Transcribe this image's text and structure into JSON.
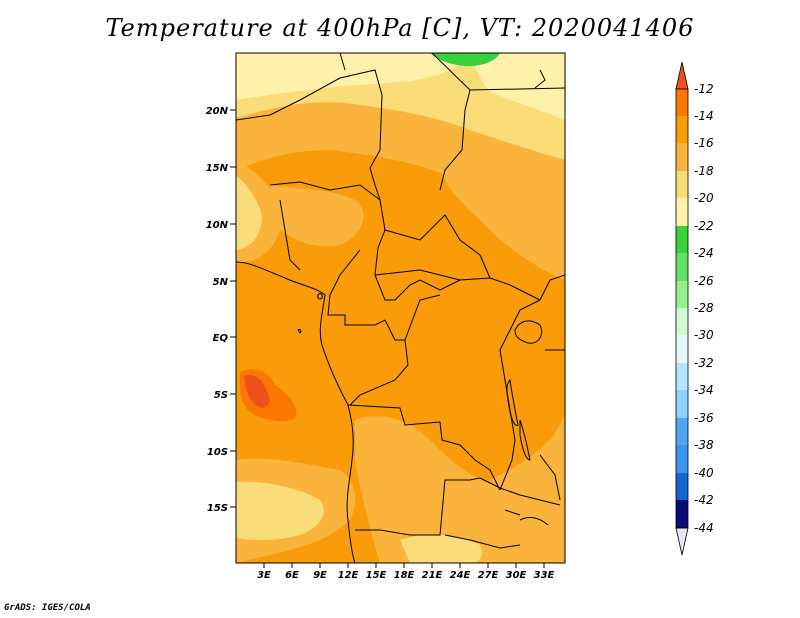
{
  "title": "Temperature at 400hPa [C], VT: 2020041406",
  "credit": "GrADS: IGES/COLA",
  "map": {
    "variable": "Temperature at 400hPa",
    "units": "C",
    "valid_time": "2020041406",
    "lat_range": [
      -20,
      25
    ],
    "lon_range": [
      0,
      36
    ],
    "lat_ticks": [
      "20N",
      "15N",
      "10N",
      "5N",
      "EQ",
      "5S",
      "10S",
      "15S"
    ],
    "lon_ticks": [
      "3E",
      "6E",
      "9E",
      "12E",
      "15E",
      "18E",
      "21E",
      "24E",
      "27E",
      "30E",
      "33E"
    ]
  },
  "colorbar": {
    "labels": [
      "-12",
      "-14",
      "-16",
      "-18",
      "-20",
      "-22",
      "-24",
      "-26",
      "-28",
      "-30",
      "-32",
      "-34",
      "-36",
      "-38",
      "-40",
      "-42",
      "-44"
    ],
    "colors": {
      "above_-12": "#f0501e",
      "-14_-12": "#fa7800",
      "-16_-14": "#fa9b0a",
      "-18_-16": "#fab43c",
      "-20_-18": "#fadc78",
      "-22_-20": "#fff0aa",
      "-24_-22": "#37d23c",
      "-26_-24": "#64e164",
      "-28_-26": "#96f08c",
      "-30_-28": "#d2fad2",
      "-32_-30": "#e6fafa",
      "-34_-32": "#b4e6ff",
      "-36_-34": "#8cd2fa",
      "-38_-36": "#50a5f5",
      "-40_-38": "#3c96f0",
      "-42_-40": "#1464d2",
      "-44_-42": "#0046aa",
      "below_-44": "#0a0a78"
    }
  }
}
